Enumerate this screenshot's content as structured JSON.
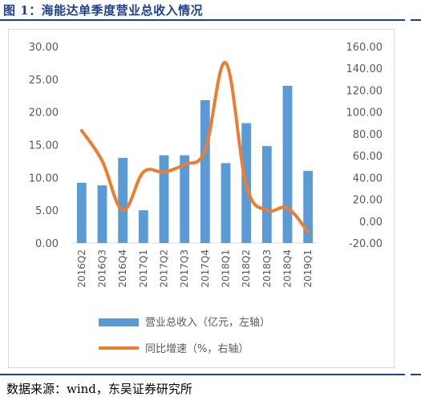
{
  "header": {
    "title": "图 1：海能达单季度营业总收入情况"
  },
  "footer": {
    "source": "数据来源：wind，东吴证券研究所"
  },
  "colors": {
    "bar": "#5b9bd5",
    "line": "#ed7d31",
    "axis_text": "#595959",
    "title_blue": "#1f3f8f"
  },
  "chart_data": {
    "type": "bar",
    "categories": [
      "2016Q2",
      "2016Q3",
      "2016Q4",
      "2017Q1",
      "2017Q2",
      "2017Q3",
      "2017Q4",
      "2018Q1",
      "2018Q2",
      "2018Q3",
      "2018Q4",
      "2019Q1"
    ],
    "series": [
      {
        "name": "营业总收入（亿元，左轴）",
        "type": "bar",
        "axis": "left",
        "values": [
          9.2,
          8.8,
          13.0,
          5.0,
          13.4,
          13.4,
          21.8,
          12.2,
          18.3,
          14.8,
          24.0,
          11.0
        ]
      },
      {
        "name": "同比增速（%，右轴）",
        "type": "line",
        "axis": "right",
        "values": [
          83,
          55,
          10,
          45,
          45,
          52,
          65,
          145,
          33,
          10,
          12,
          -10
        ]
      }
    ],
    "y_left": {
      "min": 0,
      "max": 30,
      "ticks": [
        "0.00",
        "5.00",
        "10.00",
        "15.00",
        "20.00",
        "25.00",
        "30.00"
      ]
    },
    "y_right": {
      "min": -20,
      "max": 160,
      "ticks": [
        "-20.00",
        "0.00",
        "20.00",
        "40.00",
        "60.00",
        "80.00",
        "100.00",
        "120.00",
        "140.00",
        "160.00"
      ]
    },
    "grid": false,
    "legend_position": "bottom"
  }
}
